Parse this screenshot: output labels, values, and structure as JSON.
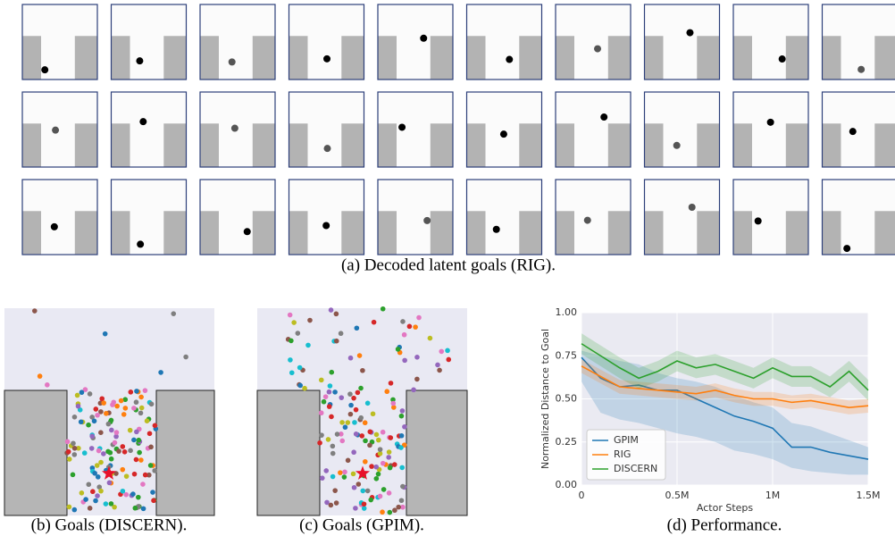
{
  "figure_a": {
    "caption": "(a) Decoded latent goals (RIG)."
  },
  "figure_b": {
    "caption": "(b) Goals (DISCERN)."
  },
  "figure_c": {
    "caption": "(c) Goals (GPIM)."
  },
  "chart_data": {
    "type": "line",
    "caption": "(d) Performance.",
    "x_label": "Actor Steps",
    "y_label": "Normalized Distance to Goal",
    "x": [
      0,
      100000,
      200000,
      300000,
      400000,
      500000,
      600000,
      700000,
      800000,
      900000,
      1000000,
      1100000,
      1200000,
      1300000,
      1400000,
      1500000
    ],
    "series": [
      {
        "name": "GPIM",
        "color": "#1f77b4",
        "values": [
          0.74,
          0.62,
          0.57,
          0.58,
          0.55,
          0.55,
          0.5,
          0.45,
          0.4,
          0.37,
          0.33,
          0.22,
          0.22,
          0.19,
          0.17,
          0.15
        ],
        "lower": [
          0.6,
          0.42,
          0.38,
          0.36,
          0.33,
          0.3,
          0.28,
          0.25,
          0.2,
          0.18,
          0.15,
          0.1,
          0.08,
          0.07,
          0.06,
          0.06
        ],
        "upper": [
          0.78,
          0.75,
          0.72,
          0.7,
          0.65,
          0.62,
          0.6,
          0.57,
          0.52,
          0.48,
          0.45,
          0.36,
          0.34,
          0.3,
          0.26,
          0.22
        ]
      },
      {
        "name": "RIG",
        "color": "#ff7f0e",
        "values": [
          0.69,
          0.63,
          0.57,
          0.56,
          0.55,
          0.54,
          0.53,
          0.55,
          0.52,
          0.5,
          0.5,
          0.48,
          0.49,
          0.47,
          0.45,
          0.46
        ],
        "lower": [
          0.65,
          0.59,
          0.53,
          0.52,
          0.51,
          0.5,
          0.49,
          0.51,
          0.48,
          0.46,
          0.46,
          0.44,
          0.45,
          0.43,
          0.41,
          0.42
        ],
        "upper": [
          0.73,
          0.67,
          0.61,
          0.6,
          0.59,
          0.58,
          0.57,
          0.59,
          0.56,
          0.54,
          0.54,
          0.52,
          0.53,
          0.51,
          0.49,
          0.5
        ]
      },
      {
        "name": "DISCERN",
        "color": "#2ca02c",
        "values": [
          0.82,
          0.75,
          0.68,
          0.62,
          0.66,
          0.72,
          0.68,
          0.7,
          0.66,
          0.62,
          0.68,
          0.63,
          0.63,
          0.57,
          0.66,
          0.55
        ],
        "lower": [
          0.76,
          0.69,
          0.62,
          0.56,
          0.6,
          0.66,
          0.62,
          0.64,
          0.6,
          0.56,
          0.62,
          0.57,
          0.57,
          0.51,
          0.6,
          0.49
        ],
        "upper": [
          0.88,
          0.81,
          0.74,
          0.68,
          0.72,
          0.78,
          0.74,
          0.76,
          0.72,
          0.68,
          0.74,
          0.69,
          0.69,
          0.63,
          0.72,
          0.61
        ]
      }
    ],
    "xlim": [
      0,
      1500000
    ],
    "xticks": [
      0,
      {
        "value": 500000,
        "label": "0.5M"
      },
      {
        "value": 1000000,
        "label": "1M"
      },
      {
        "value": 1500000,
        "label": "1.5M"
      }
    ],
    "ylim": [
      0,
      1
    ],
    "yticks": [
      {
        "value": 0,
        "label": "0.00"
      },
      {
        "value": 0.25,
        "label": "0.25"
      },
      {
        "value": 0.5,
        "label": "0.50"
      },
      {
        "value": 0.75,
        "label": "0.75"
      },
      {
        "value": 1,
        "label": "1.00"
      }
    ],
    "grid": true,
    "legend": "lower left",
    "background": "#eaeaf2"
  }
}
